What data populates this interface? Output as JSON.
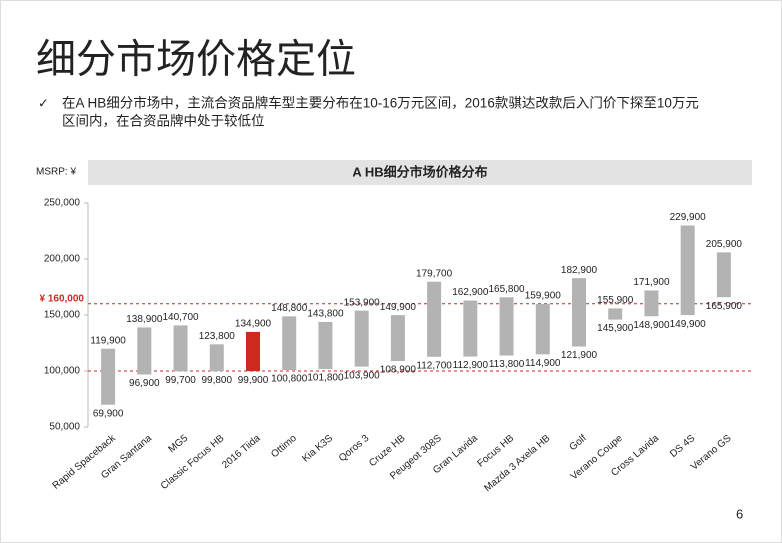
{
  "header": {
    "title": "细分市场价格定位",
    "bullet_marker": "✓",
    "bullet_lines": [
      "在A HB细分市场中，主流合资品牌车型主要分布在10-16万元区间，2016款骐达改款后入门价下探至10万元",
      "区间内，在合资品牌中处于较低位"
    ]
  },
  "chart_data": {
    "type": "range_bar",
    "title": "A HB细分市场价格分布",
    "y_label": "MSRP: ¥",
    "categories": [
      "Rapid Spaceback",
      "Gran Santana",
      "MG5",
      "Classic Focus HB",
      "2016 Tiida",
      "Ottimo",
      "Kia K3S",
      "Qoros 3",
      "Cruze HB",
      "Peugeot 308S",
      "Gran Lavida",
      "Focus HB",
      "Mazda 3 Axela HB",
      "Golf",
      "Verano Coupe",
      "Cross Lavida",
      "DS 4S",
      "Verano GS"
    ],
    "low": [
      69900,
      96900,
      99700,
      99800,
      99900,
      100800,
      101800,
      103900,
      108900,
      112700,
      112900,
      113800,
      114900,
      121900,
      145900,
      148900,
      149900,
      165900
    ],
    "high": [
      119900,
      138900,
      140700,
      123800,
      134900,
      148800,
      143800,
      153900,
      149900,
      179700,
      162900,
      165800,
      159900,
      182900,
      155900,
      171900,
      229900,
      205900
    ],
    "low_labels": [
      "69,900",
      "96,900",
      "99,700",
      "99,800",
      "99,900",
      "100,800",
      "101,800",
      "103,900",
      "108,900",
      "112,700",
      "112,900",
      "113,800",
      "114,900",
      "121,900",
      "145,900",
      "148,900",
      "149,900",
      "165,900"
    ],
    "high_labels": [
      "119,900",
      "138,900",
      "140,700",
      "123,800",
      "134,900",
      "148,800",
      "143,800",
      "153,900",
      "149,900",
      "179,700",
      "162,900",
      "165,800",
      "159,900",
      "182,900",
      "155,900",
      "171,900",
      "229,900",
      "205,900"
    ],
    "colors": [
      "#b3b3b3",
      "#b3b3b3",
      "#b3b3b3",
      "#b3b3b3",
      "#cc2a1e",
      "#b3b3b3",
      "#b3b3b3",
      "#b3b3b3",
      "#b3b3b3",
      "#b3b3b3",
      "#b3b3b3",
      "#b3b3b3",
      "#b3b3b3",
      "#b3b3b3",
      "#b3b3b3",
      "#b3b3b3",
      "#b3b3b3",
      "#b3b3b3"
    ],
    "ylim": [
      50000,
      250000
    ],
    "yticks": [
      {
        "value": 50000,
        "label": "50,000"
      },
      {
        "value": 100000,
        "label": "100,000"
      },
      {
        "value": 150000,
        "label": "150,000"
      },
      {
        "value": 200000,
        "label": "200,000"
      },
      {
        "value": 250000,
        "label": "250,000"
      }
    ],
    "reference_lines": [
      {
        "value": 160000,
        "label": "¥ 160,000",
        "color": "#cc2a1e"
      },
      {
        "value": 100000,
        "color": "#cc2a1e"
      }
    ]
  },
  "footer": {
    "page": "6"
  }
}
